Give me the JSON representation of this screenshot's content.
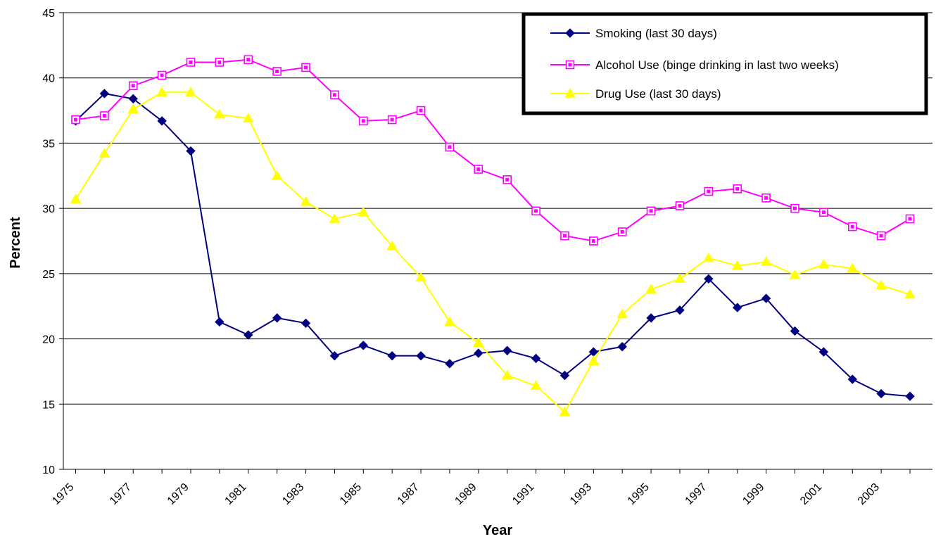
{
  "chart_data": {
    "type": "line",
    "xlabel": "Year",
    "ylabel": "Percent",
    "ylim": [
      10,
      45
    ],
    "yticks": [
      "10",
      "15",
      "20",
      "25",
      "30",
      "35",
      "40",
      "45"
    ],
    "x": [
      1975,
      1976,
      1977,
      1978,
      1979,
      1980,
      1981,
      1982,
      1983,
      1984,
      1985,
      1986,
      1987,
      1988,
      1989,
      1990,
      1991,
      1992,
      1993,
      1994,
      1995,
      1996,
      1997,
      1998,
      1999,
      2000,
      2001,
      2002,
      2003,
      2004
    ],
    "xtick_labels": [
      "1975",
      "1977",
      "1979",
      "1981",
      "1983",
      "1985",
      "1987",
      "1989",
      "1991",
      "1993",
      "1995",
      "1997",
      "1999",
      "2001",
      "2003"
    ],
    "grid": true,
    "legend_position": "top-right",
    "series": [
      {
        "name": "Smoking (last 30 days)",
        "color": "#000080",
        "marker": "diamond",
        "values": [
          36.7,
          38.8,
          38.4,
          36.7,
          34.4,
          21.3,
          20.3,
          21.6,
          21.2,
          18.7,
          19.5,
          18.7,
          18.7,
          18.1,
          18.9,
          19.1,
          18.5,
          17.2,
          19.0,
          19.4,
          21.6,
          22.2,
          24.6,
          22.4,
          23.1,
          20.6,
          19.0,
          16.9,
          15.8,
          15.6
        ]
      },
      {
        "name": "Alcohol Use (binge drinking in last two weeks)",
        "color": "#ff00ff",
        "marker": "square",
        "values": [
          36.8,
          37.1,
          39.4,
          40.2,
          41.2,
          41.2,
          41.4,
          40.5,
          40.8,
          38.7,
          36.7,
          36.8,
          37.5,
          34.7,
          33.0,
          32.2,
          29.8,
          27.9,
          27.5,
          28.2,
          29.8,
          30.2,
          31.3,
          31.5,
          30.8,
          30.0,
          29.7,
          28.6,
          27.9,
          29.2
        ]
      },
      {
        "name": "Drug Use (last 30 days)",
        "color": "#ffff00",
        "marker": "triangle",
        "values": [
          30.7,
          34.2,
          37.6,
          38.9,
          38.9,
          37.2,
          36.9,
          32.5,
          30.5,
          29.2,
          29.7,
          27.1,
          24.7,
          21.3,
          19.7,
          17.2,
          16.4,
          14.4,
          18.3,
          21.9,
          23.8,
          24.6,
          26.2,
          25.6,
          25.9,
          24.9,
          25.7,
          25.4,
          24.1,
          23.4
        ]
      }
    ]
  }
}
